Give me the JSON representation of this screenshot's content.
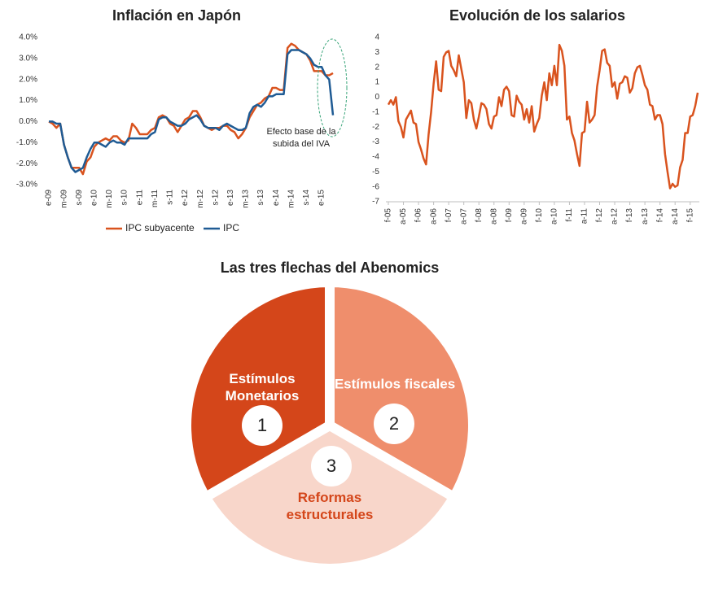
{
  "chart_data": [
    {
      "type": "line",
      "title": "Inflación en Japón",
      "categories": [
        "e-09",
        null,
        null,
        null,
        "m-09",
        null,
        null,
        null,
        "s-09",
        null,
        null,
        null,
        "e-10",
        null,
        null,
        null,
        "m-10",
        null,
        null,
        null,
        "s-10",
        null,
        null,
        null,
        "e-11",
        null,
        null,
        null,
        "m-11",
        null,
        null,
        null,
        "s-11",
        null,
        null,
        null,
        "e-12",
        null,
        null,
        null,
        "m-12",
        null,
        null,
        null,
        "s-12",
        null,
        null,
        null,
        "e-13",
        null,
        null,
        null,
        "m-13",
        null,
        null,
        null,
        "s-13",
        null,
        null,
        null,
        "e-14",
        null,
        null,
        null,
        "m-14",
        null,
        null,
        null,
        "s-14",
        null,
        null,
        null,
        "e-15",
        null,
        null,
        null
      ],
      "series": [
        {
          "name": "IPC subyacente",
          "color": "#d9531e",
          "values": [
            0.0,
            -0.1,
            -0.3,
            -0.1,
            -1.1,
            -1.7,
            -2.2,
            -2.2,
            -2.2,
            -2.5,
            -1.9,
            -1.7,
            -1.2,
            -1.0,
            -0.9,
            -0.8,
            -0.9,
            -0.7,
            -0.7,
            -0.9,
            -1.0,
            -0.9,
            -0.1,
            -0.3,
            -0.6,
            -0.6,
            -0.6,
            -0.4,
            -0.3,
            0.2,
            0.3,
            0.2,
            -0.1,
            -0.2,
            -0.5,
            -0.2,
            0.1,
            0.2,
            0.5,
            0.5,
            0.2,
            -0.2,
            -0.3,
            -0.4,
            -0.3,
            -0.3,
            -0.2,
            -0.2,
            -0.4,
            -0.5,
            -0.8,
            -0.6,
            -0.3,
            0.2,
            0.5,
            0.8,
            0.9,
            1.1,
            1.2,
            1.6,
            1.6,
            1.5,
            1.5,
            3.5,
            3.7,
            3.6,
            3.4,
            3.3,
            3.2,
            2.9,
            2.4,
            2.4,
            2.4,
            2.2,
            2.2,
            2.3
          ]
        },
        {
          "name": "IPC",
          "color": "#1f5b94",
          "values": [
            0.0,
            0.0,
            -0.1,
            -0.1,
            -1.1,
            -1.7,
            -2.2,
            -2.4,
            -2.3,
            -2.2,
            -1.7,
            -1.3,
            -1.0,
            -1.0,
            -1.1,
            -1.2,
            -1.0,
            -0.9,
            -1.0,
            -1.0,
            -1.1,
            -0.8,
            -0.8,
            -0.8,
            -0.8,
            -0.8,
            -0.8,
            -0.6,
            -0.5,
            0.1,
            0.2,
            0.2,
            0.0,
            -0.1,
            -0.2,
            -0.2,
            -0.1,
            0.1,
            0.2,
            0.3,
            0.1,
            -0.2,
            -0.3,
            -0.3,
            -0.3,
            -0.4,
            -0.2,
            -0.1,
            -0.2,
            -0.3,
            -0.4,
            -0.4,
            -0.3,
            0.4,
            0.7,
            0.8,
            0.7,
            0.9,
            1.2,
            1.2,
            1.3,
            1.3,
            1.3,
            3.2,
            3.4,
            3.4,
            3.4,
            3.3,
            3.2,
            3.0,
            2.7,
            2.6,
            2.6,
            2.2,
            2.0,
            0.3
          ]
        }
      ],
      "ylim": [
        -3,
        4
      ],
      "yticks": [
        {
          "value": -3,
          "label": "-3.0%"
        },
        {
          "value": -2,
          "label": "-2.0%"
        },
        {
          "value": -1,
          "label": "-1.0%"
        },
        {
          "value": 0,
          "label": "0.0%"
        },
        {
          "value": 1,
          "label": "1.0%"
        },
        {
          "value": 2,
          "label": "2.0%"
        },
        {
          "value": 3,
          "label": "3.0%"
        },
        {
          "value": 4,
          "label": "4.0%"
        }
      ],
      "annotation": [
        "Efecto base de la",
        "subida del IVA"
      ],
      "legend": "bottom",
      "grid": false
    },
    {
      "type": "line",
      "title": "Evolución de los salarios",
      "categories": [
        "f-05",
        null,
        null,
        null,
        null,
        null,
        "a-05",
        null,
        null,
        null,
        null,
        null,
        "f-06",
        null,
        null,
        null,
        null,
        null,
        "a-06",
        null,
        null,
        null,
        null,
        null,
        "f-07",
        null,
        null,
        null,
        null,
        null,
        "a-07",
        null,
        null,
        null,
        null,
        null,
        "f-08",
        null,
        null,
        null,
        null,
        null,
        "a-08",
        null,
        null,
        null,
        null,
        null,
        "f-09",
        null,
        null,
        null,
        null,
        null,
        "a-09",
        null,
        null,
        null,
        null,
        null,
        "f-10",
        null,
        null,
        null,
        null,
        null,
        "a-10",
        null,
        null,
        null,
        null,
        null,
        "f-11",
        null,
        null,
        null,
        null,
        null,
        "a-11",
        null,
        null,
        null,
        null,
        null,
        "f-12",
        null,
        null,
        null,
        null,
        null,
        "a-12",
        null,
        null,
        null,
        null,
        null,
        "f-13",
        null,
        null,
        null,
        null,
        null,
        "a-13",
        null,
        null,
        null,
        null,
        null,
        "f-14",
        null,
        null,
        null,
        null,
        null,
        "a-14",
        null,
        null,
        null,
        null,
        null,
        "f-15",
        null,
        null,
        null
      ],
      "series": [
        {
          "color": "#d9531e",
          "values": [
            -0.5,
            -0.2,
            -0.5,
            0.0,
            -1.6,
            -2.0,
            -2.7,
            -1.5,
            -1.2,
            -0.9,
            -1.7,
            -1.8,
            -3.0,
            -3.5,
            -4.1,
            -4.5,
            -2.5,
            -1.0,
            0.9,
            2.4,
            0.5,
            0.4,
            2.7,
            3.0,
            3.1,
            2.1,
            1.8,
            1.4,
            2.8,
            1.9,
            1.0,
            -1.4,
            -0.2,
            -0.4,
            -1.5,
            -2.1,
            -1.3,
            -0.4,
            -0.5,
            -0.8,
            -1.8,
            -2.1,
            -1.3,
            -1.2,
            0.0,
            -0.6,
            0.5,
            0.7,
            0.4,
            -1.2,
            -1.3,
            0.1,
            -0.3,
            -0.5,
            -1.5,
            -0.8,
            -1.7,
            -0.6,
            -2.3,
            -1.8,
            -1.4,
            0.1,
            1.0,
            -0.2,
            1.6,
            0.8,
            2.1,
            0.8,
            3.5,
            3.1,
            2.1,
            -1.5,
            -1.3,
            -2.4,
            -2.9,
            -3.8,
            -4.6,
            -2.4,
            -2.3,
            -0.3,
            -1.7,
            -1.5,
            -1.2,
            0.7,
            1.8,
            3.1,
            3.2,
            2.3,
            2.1,
            0.7,
            1.0,
            -0.1,
            0.9,
            1.0,
            1.4,
            1.3,
            0.3,
            0.6,
            1.6,
            2.0,
            2.1,
            1.5,
            0.8,
            0.5,
            -0.5,
            -0.6,
            -1.5,
            -1.2,
            -1.2,
            -1.8,
            -3.8,
            -5.0,
            -6.1,
            -5.8,
            -6.0,
            -5.9,
            -4.7,
            -4.2,
            -2.4,
            -2.4,
            -1.3,
            -1.2,
            -0.6,
            0.3
          ]
        }
      ],
      "ylim": [
        -7,
        4
      ],
      "yticks": [
        -7,
        -6,
        -5,
        -4,
        -3,
        -2,
        -1,
        0,
        1,
        2,
        3,
        4
      ],
      "grid": false
    },
    {
      "type": "pie",
      "title": "Las tres flechas del Abenomics",
      "categories": [
        "Estímulos Monetarios",
        "Estímulos fiscales",
        "Reformas estructurales"
      ],
      "badges": [
        "1",
        "2",
        "3"
      ],
      "values": [
        1,
        1,
        1
      ],
      "colors": [
        "#d4461a",
        "#ef8e6c",
        "#f8d6ca"
      ]
    }
  ]
}
